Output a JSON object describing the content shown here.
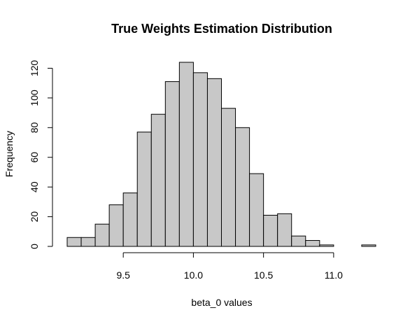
{
  "chart_data": {
    "type": "bar",
    "title": "True Weights Estimation Distribution",
    "xlabel": "beta_0 values",
    "ylabel": "Frequency",
    "bin_width": 0.1,
    "bins": [
      {
        "start": 9.1,
        "end": 9.2,
        "count": 6
      },
      {
        "start": 9.2,
        "end": 9.3,
        "count": 6
      },
      {
        "start": 9.3,
        "end": 9.4,
        "count": 15
      },
      {
        "start": 9.4,
        "end": 9.5,
        "count": 28
      },
      {
        "start": 9.5,
        "end": 9.6,
        "count": 36
      },
      {
        "start": 9.6,
        "end": 9.7,
        "count": 77
      },
      {
        "start": 9.7,
        "end": 9.8,
        "count": 89
      },
      {
        "start": 9.8,
        "end": 9.9,
        "count": 111
      },
      {
        "start": 9.9,
        "end": 10.0,
        "count": 124
      },
      {
        "start": 10.0,
        "end": 10.1,
        "count": 117
      },
      {
        "start": 10.1,
        "end": 10.2,
        "count": 113
      },
      {
        "start": 10.2,
        "end": 10.3,
        "count": 93
      },
      {
        "start": 10.3,
        "end": 10.4,
        "count": 80
      },
      {
        "start": 10.4,
        "end": 10.5,
        "count": 49
      },
      {
        "start": 10.5,
        "end": 10.6,
        "count": 21
      },
      {
        "start": 10.6,
        "end": 10.7,
        "count": 22
      },
      {
        "start": 10.7,
        "end": 10.8,
        "count": 7
      },
      {
        "start": 10.8,
        "end": 10.9,
        "count": 4
      },
      {
        "start": 10.9,
        "end": 11.0,
        "count": 1
      },
      {
        "start": 11.0,
        "end": 11.1,
        "count": 0
      },
      {
        "start": 11.1,
        "end": 11.2,
        "count": 0
      },
      {
        "start": 11.2,
        "end": 11.3,
        "count": 1
      }
    ],
    "xlim": [
      9.1,
      11.3
    ],
    "ylim": [
      0,
      124
    ],
    "x_ticks": [
      9.5,
      10.0,
      10.5,
      11.0
    ],
    "x_tick_labels": [
      "9.5",
      "10.0",
      "10.5",
      "11.0"
    ],
    "y_ticks": [
      0,
      20,
      40,
      60,
      80,
      100,
      120
    ],
    "y_tick_labels": [
      "0",
      "20",
      "40",
      "60",
      "80",
      "100",
      "120"
    ],
    "bar_color": "#c8c8c8",
    "grid": false
  }
}
